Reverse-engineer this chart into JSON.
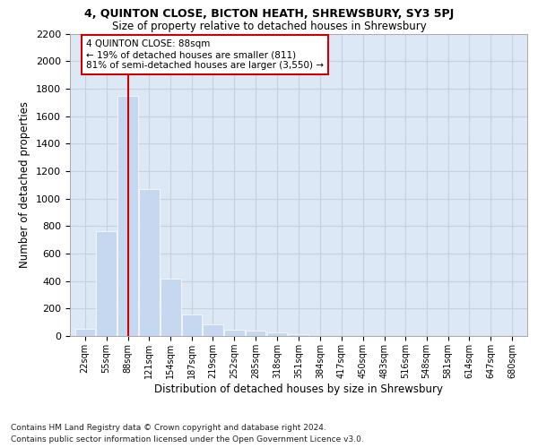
{
  "title1": "4, QUINTON CLOSE, BICTON HEATH, SHREWSBURY, SY3 5PJ",
  "title2": "Size of property relative to detached houses in Shrewsbury",
  "xlabel": "Distribution of detached houses by size in Shrewsbury",
  "ylabel": "Number of detached properties",
  "footer1": "Contains HM Land Registry data © Crown copyright and database right 2024.",
  "footer2": "Contains public sector information licensed under the Open Government Licence v3.0.",
  "annotation_title": "4 QUINTON CLOSE: 88sqm",
  "annotation_line1": "← 19% of detached houses are smaller (811)",
  "annotation_line2": "81% of semi-detached houses are larger (3,550) →",
  "property_size_sqm": 88,
  "bins": [
    22,
    55,
    88,
    121,
    154,
    187,
    219,
    252,
    285,
    318,
    351,
    384,
    417,
    450,
    483,
    516,
    548,
    581,
    614,
    647,
    680
  ],
  "values": [
    50,
    760,
    1750,
    1070,
    420,
    155,
    82,
    48,
    38,
    28,
    15,
    0,
    0,
    0,
    0,
    0,
    0,
    0,
    0,
    0
  ],
  "bar_color": "#c5d8f0",
  "vline_color": "#cc0000",
  "vline_x": 88,
  "ylim": [
    0,
    2200
  ],
  "yticks": [
    0,
    200,
    400,
    600,
    800,
    1000,
    1200,
    1400,
    1600,
    1800,
    2000,
    2200
  ],
  "grid_color": "#c8d0dc",
  "bg_color": "#dce8f5",
  "background_color": "#ffffff",
  "annotation_box_color": "#cc0000",
  "annotation_fill": "#ffffff",
  "title1_fontsize": 9,
  "title2_fontsize": 9
}
